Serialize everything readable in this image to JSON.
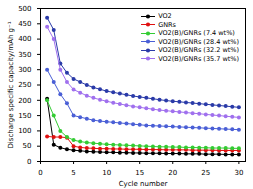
{
  "chart_data": {
    "type": "line",
    "x_label": "Cycle number",
    "y_label": "Discharge specific capacity/mAh g⁻¹",
    "x": [
      1,
      2,
      3,
      4,
      5,
      6,
      7,
      8,
      9,
      10,
      11,
      12,
      13,
      14,
      15,
      16,
      17,
      18,
      19,
      20,
      21,
      22,
      23,
      24,
      25,
      26,
      27,
      28,
      29,
      30
    ],
    "xlim": [
      0,
      31
    ],
    "xticks": [
      0,
      5,
      10,
      15,
      20,
      25,
      30
    ],
    "ylim": [
      0,
      500
    ],
    "yticks": [
      0,
      50,
      100,
      150,
      200,
      250,
      300,
      350,
      400,
      450,
      500
    ],
    "grid": false,
    "legend": "upper right",
    "marker": "circle",
    "line_style": "solid",
    "series": [
      {
        "name": "VO2",
        "color": "#000000",
        "values": [
          205,
          55,
          45,
          40,
          37,
          35,
          33,
          32,
          31,
          30,
          30,
          29,
          29,
          28,
          28,
          27,
          27,
          27,
          26,
          26,
          26,
          25,
          25,
          25,
          24,
          24,
          24,
          23,
          23,
          23
        ]
      },
      {
        "name": "GNRs",
        "color": "#e01010",
        "values": [
          82,
          80,
          80,
          78,
          50,
          46,
          44,
          43,
          42,
          42,
          41,
          41,
          40,
          40,
          40,
          39,
          39,
          39,
          38,
          38,
          38,
          38,
          37,
          37,
          37,
          37,
          36,
          36,
          36,
          36
        ]
      },
      {
        "name": "VO2(B)/GNRs (7.4 wt%)",
        "color": "#33cc33",
        "values": [
          200,
          150,
          100,
          80,
          70,
          65,
          62,
          60,
          58,
          56,
          55,
          54,
          53,
          52,
          51,
          50,
          49,
          48,
          48,
          47,
          47,
          46,
          46,
          45,
          45,
          44,
          44,
          44,
          43,
          43
        ]
      },
      {
        "name": "VO2(B)/GNRs (28.4 wt%)",
        "color": "#4a5fd6",
        "values": [
          300,
          260,
          220,
          190,
          150,
          145,
          140,
          135,
          132,
          130,
          128,
          126,
          124,
          122,
          120,
          118,
          117,
          116,
          115,
          114,
          113,
          112,
          111,
          110,
          109,
          108,
          107,
          106,
          105,
          104
        ]
      },
      {
        "name": "VO2(B)/GNRs (32.2 wt%)",
        "color": "#2a3aa8",
        "values": [
          470,
          430,
          320,
          290,
          270,
          260,
          250,
          242,
          236,
          230,
          226,
          222,
          218,
          214,
          211,
          208,
          205,
          202,
          199,
          197,
          195,
          193,
          191,
          189,
          187,
          185,
          183,
          181,
          179,
          177
        ]
      },
      {
        "name": "VO2(B)/GNRs (35.7 wt%)",
        "color": "#a070ee",
        "values": [
          440,
          400,
          300,
          260,
          235,
          225,
          215,
          208,
          202,
          197,
          192,
          188,
          184,
          180,
          177,
          174,
          171,
          168,
          166,
          164,
          162,
          160,
          158,
          156,
          154,
          152,
          150,
          148,
          146,
          144
        ]
      }
    ]
  }
}
